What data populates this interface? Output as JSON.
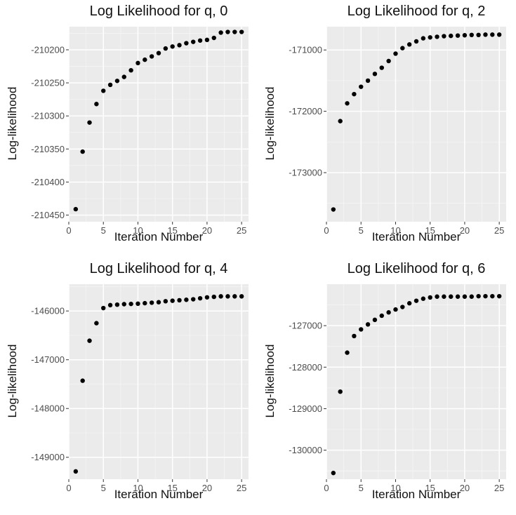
{
  "chart_data": [
    {
      "type": "scatter",
      "title": "Log Likelihood for q, 0",
      "xlabel": "Iteration Number",
      "ylabel": "Log-likelihood",
      "xlim": [
        0,
        26
      ],
      "ylim": [
        -210460,
        -210165
      ],
      "xticks": [
        0,
        5,
        10,
        15,
        20,
        25
      ],
      "yticks": [
        -210450,
        -210400,
        -210350,
        -210300,
        -210250,
        -210200
      ],
      "ytick_labels": [
        "-210450",
        "-210400",
        "-210350",
        "-210300",
        "-210250",
        "-210200"
      ],
      "grid": true,
      "series": [
        {
          "x": [
            1,
            2,
            3,
            4,
            5,
            6,
            7,
            8,
            9,
            10,
            11,
            12,
            13,
            14,
            15,
            16,
            17,
            18,
            19,
            20,
            21,
            22,
            23,
            24,
            25
          ],
          "y": [
            -210441,
            -210354,
            -210310,
            -210282,
            -210262,
            -210253,
            -210247,
            -210241,
            -210231,
            -210220,
            -210215,
            -210210,
            -210205,
            -210198,
            -210195,
            -210193,
            -210190,
            -210188,
            -210186,
            -210185,
            -210182,
            -210174,
            -210173,
            -210173,
            -210173
          ]
        }
      ]
    },
    {
      "type": "scatter",
      "title": "Log Likelihood for q, 2",
      "xlabel": "Iteration Number",
      "ylabel": "Log-likelihood",
      "xlim": [
        0,
        26
      ],
      "ylim": [
        -173800,
        -170620
      ],
      "xticks": [
        0,
        5,
        10,
        15,
        20,
        25
      ],
      "yticks": [
        -173000,
        -172000,
        -171000
      ],
      "ytick_labels": [
        "-173000",
        "-172000",
        "-171000"
      ],
      "grid": true,
      "series": [
        {
          "x": [
            1,
            2,
            3,
            4,
            5,
            6,
            7,
            8,
            9,
            10,
            11,
            12,
            13,
            14,
            15,
            16,
            17,
            18,
            19,
            20,
            21,
            22,
            23,
            24,
            25
          ],
          "y": [
            -173600,
            -172160,
            -171870,
            -171720,
            -171600,
            -171500,
            -171390,
            -171290,
            -171180,
            -171060,
            -170970,
            -170910,
            -170860,
            -170810,
            -170795,
            -170785,
            -170775,
            -170770,
            -170765,
            -170760,
            -170755,
            -170755,
            -170750,
            -170750,
            -170750
          ]
        }
      ]
    },
    {
      "type": "scatter",
      "title": "Log Likelihood for q, 4",
      "xlabel": "Iteration Number",
      "ylabel": "Log-likelihood",
      "xlim": [
        0,
        26
      ],
      "ylim": [
        -149450,
        -145450
      ],
      "xticks": [
        0,
        5,
        10,
        15,
        20,
        25
      ],
      "yticks": [
        -149000,
        -148000,
        -147000,
        -146000
      ],
      "ytick_labels": [
        "-149000",
        "-148000",
        "-147000",
        "-146000"
      ],
      "grid": true,
      "series": [
        {
          "x": [
            1,
            2,
            3,
            4,
            5,
            6,
            7,
            8,
            9,
            10,
            11,
            12,
            13,
            14,
            15,
            16,
            17,
            18,
            19,
            20,
            21,
            22,
            23,
            24,
            25
          ],
          "y": [
            -149290,
            -147430,
            -146610,
            -146250,
            -145940,
            -145880,
            -145870,
            -145860,
            -145855,
            -145850,
            -145840,
            -145830,
            -145820,
            -145800,
            -145790,
            -145780,
            -145770,
            -145760,
            -145740,
            -145720,
            -145710,
            -145700,
            -145700,
            -145700,
            -145700
          ]
        }
      ]
    },
    {
      "type": "scatter",
      "title": "Log Likelihood for q, 6",
      "xlabel": "Iteration Number",
      "ylabel": "Log-likelihood",
      "xlim": [
        0,
        26
      ],
      "ylim": [
        -130700,
        -126000
      ],
      "xticks": [
        0,
        5,
        10,
        15,
        20,
        25
      ],
      "yticks": [
        -130000,
        -129000,
        -128000,
        -127000
      ],
      "ytick_labels": [
        "-130000",
        "-129000",
        "-128000",
        "-127000"
      ],
      "grid": true,
      "series": [
        {
          "x": [
            1,
            2,
            3,
            4,
            5,
            6,
            7,
            8,
            9,
            10,
            11,
            12,
            13,
            14,
            15,
            16,
            17,
            18,
            19,
            20,
            21,
            22,
            23,
            24,
            25
          ],
          "y": [
            -130550,
            -128590,
            -127650,
            -127250,
            -127090,
            -126970,
            -126860,
            -126760,
            -126680,
            -126610,
            -126550,
            -126460,
            -126400,
            -126350,
            -126320,
            -126300,
            -126300,
            -126300,
            -126300,
            -126300,
            -126300,
            -126290,
            -126290,
            -126290,
            -126290
          ]
        }
      ]
    }
  ],
  "style": {
    "panel_bg": "#ebebeb",
    "grid_major": "#ffffff",
    "grid_minor": "#f5f5f5",
    "point_color": "#000000",
    "tick_text": "#4d4d4d",
    "tick_mark": "#333333"
  }
}
